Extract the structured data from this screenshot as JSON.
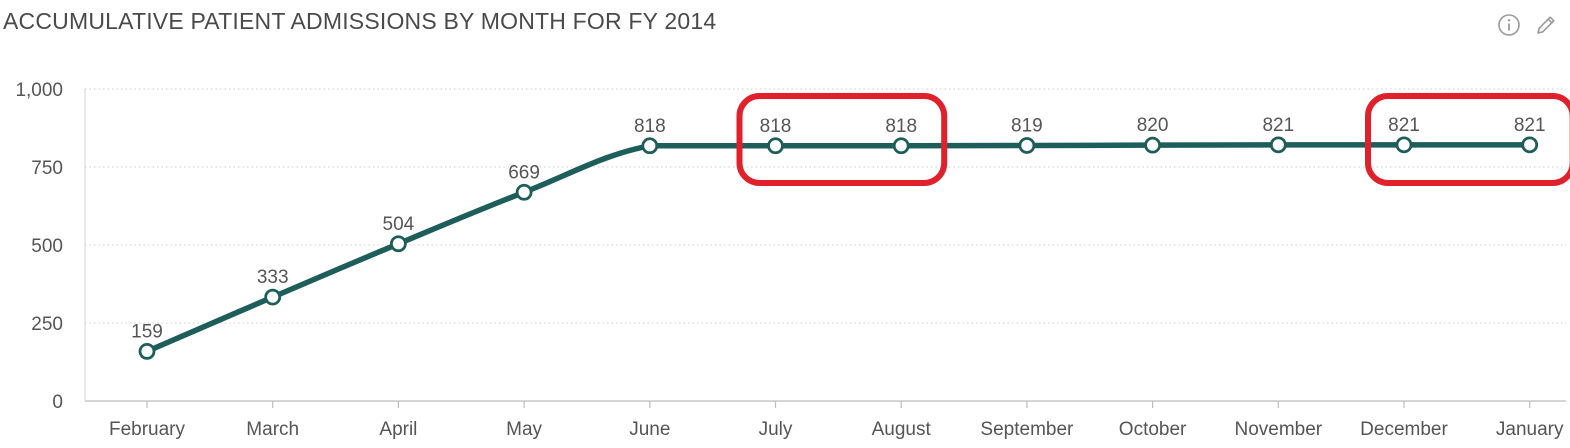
{
  "header": {
    "title": "ACCUMULATIVE PATIENT ADMISSIONS BY MONTH FOR FY 2014",
    "info_icon": "info-icon",
    "edit_icon": "pencil-icon"
  },
  "colors": {
    "line": "#1d5e5a",
    "highlight": "#e0202a",
    "grid": "#cfcfcf"
  },
  "chart_data": {
    "type": "line",
    "title": "ACCUMULATIVE PATIENT ADMISSIONS BY MONTH FOR FY 2014",
    "categories": [
      "February",
      "March",
      "April",
      "May",
      "June",
      "July",
      "August",
      "September",
      "October",
      "November",
      "December",
      "January"
    ],
    "series": [
      {
        "values": [
          159,
          333,
          504,
          669,
          818,
          818,
          818,
          819,
          820,
          821,
          821,
          821
        ]
      }
    ],
    "data_labels": [
      "159",
      "333",
      "504",
      "669",
      "818",
      "818",
      "818",
      "819",
      "820",
      "821",
      "821",
      "821"
    ],
    "ylim": [
      0,
      1000
    ],
    "yticks": [
      0,
      250,
      500,
      750,
      1000
    ],
    "ytick_labels": [
      "0",
      "250",
      "500",
      "750",
      "1,000"
    ],
    "xlabel": "",
    "ylabel": "",
    "grid": true,
    "highlights": [
      {
        "from_category": "July",
        "to_category": "August"
      },
      {
        "from_category": "December",
        "to_category": "January"
      }
    ]
  }
}
